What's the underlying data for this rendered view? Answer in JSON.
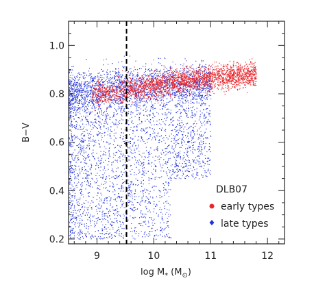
{
  "chart_data": {
    "type": "scatter",
    "xlabel": "log M",
    "xlabel_sub": "*",
    "xlabel_unit": "(M",
    "xlabel_unit_sub": "⊙",
    "xlabel_close": ")",
    "ylabel": "B−V",
    "xlim": [
      8.5,
      12.3
    ],
    "ylim": [
      0.18,
      1.1
    ],
    "xticks": [
      {
        "value": 9,
        "label": "9"
      },
      {
        "value": 10,
        "label": "10"
      },
      {
        "value": 11,
        "label": "11"
      },
      {
        "value": 12,
        "label": "12"
      }
    ],
    "yticks": [
      {
        "value": 0.2,
        "label": "0.2"
      },
      {
        "value": 0.4,
        "label": "0.4"
      },
      {
        "value": 0.6,
        "label": "0.6"
      },
      {
        "value": 0.8,
        "label": "0.8"
      },
      {
        "value": 1.0,
        "label": "1.0"
      }
    ],
    "vline": {
      "x": 9.52,
      "style": "dashed",
      "color": "#000000"
    },
    "legend": {
      "title": "DLB07",
      "position": "bottom-right"
    },
    "series": [
      {
        "name": "early types",
        "color": "#e8262c",
        "marker": "dot",
        "representative_points": [
          [
            9.0,
            0.8
          ],
          [
            9.2,
            0.81
          ],
          [
            9.5,
            0.83
          ],
          [
            9.8,
            0.85
          ],
          [
            10.0,
            0.86
          ],
          [
            10.3,
            0.88
          ],
          [
            10.6,
            0.89
          ],
          [
            10.9,
            0.9
          ],
          [
            11.2,
            0.89
          ],
          [
            11.5,
            0.88
          ],
          [
            11.7,
            0.87
          ]
        ]
      },
      {
        "name": "late types",
        "color": "#2233dd",
        "marker": "dot",
        "representative_points": [
          [
            8.6,
            0.84
          ],
          [
            8.8,
            0.6
          ],
          [
            9.0,
            0.45
          ],
          [
            9.2,
            0.35
          ],
          [
            9.4,
            0.55
          ],
          [
            9.6,
            0.65
          ],
          [
            9.8,
            0.5
          ],
          [
            10.0,
            0.62
          ],
          [
            10.2,
            0.7
          ],
          [
            10.4,
            0.75
          ],
          [
            10.6,
            0.8
          ],
          [
            10.8,
            0.85
          ],
          [
            11.0,
            0.88
          ]
        ]
      }
    ]
  }
}
